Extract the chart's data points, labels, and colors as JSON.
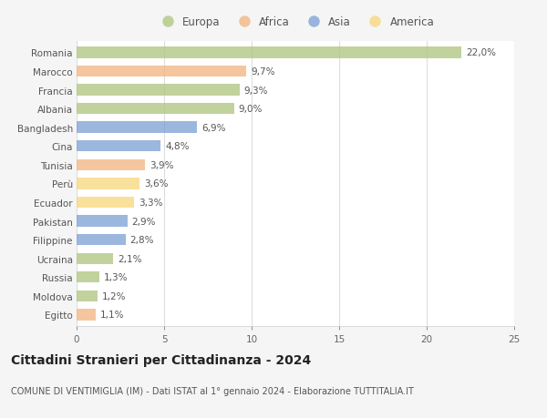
{
  "countries": [
    "Romania",
    "Marocco",
    "Francia",
    "Albania",
    "Bangladesh",
    "Cina",
    "Tunisia",
    "Perù",
    "Ecuador",
    "Pakistan",
    "Filippine",
    "Ucraina",
    "Russia",
    "Moldova",
    "Egitto"
  ],
  "values": [
    22.0,
    9.7,
    9.3,
    9.0,
    6.9,
    4.8,
    3.9,
    3.6,
    3.3,
    2.9,
    2.8,
    2.1,
    1.3,
    1.2,
    1.1
  ],
  "labels": [
    "22,0%",
    "9,7%",
    "9,3%",
    "9,0%",
    "6,9%",
    "4,8%",
    "3,9%",
    "3,6%",
    "3,3%",
    "2,9%",
    "2,8%",
    "2,1%",
    "1,3%",
    "1,2%",
    "1,1%"
  ],
  "continents": [
    "Europa",
    "Africa",
    "Europa",
    "Europa",
    "Asia",
    "Asia",
    "Africa",
    "America",
    "America",
    "Asia",
    "Asia",
    "Europa",
    "Europa",
    "Europa",
    "Africa"
  ],
  "colors": {
    "Europa": "#adc47c",
    "Africa": "#f2b47e",
    "Asia": "#7b9fd4",
    "America": "#f7d67a"
  },
  "legend_order": [
    "Europa",
    "Africa",
    "Asia",
    "America"
  ],
  "xlim": [
    0,
    25
  ],
  "xticks": [
    0,
    5,
    10,
    15,
    20,
    25
  ],
  "title": "Cittadini Stranieri per Cittadinanza - 2024",
  "subtitle": "COMUNE DI VENTIMIGLIA (IM) - Dati ISTAT al 1° gennaio 2024 - Elaborazione TUTTITALIA.IT",
  "bg_color": "#f5f5f5",
  "plot_bg": "#ffffff",
  "bar_height": 0.6,
  "label_fontsize": 7.5,
  "country_fontsize": 7.5,
  "title_fontsize": 10,
  "subtitle_fontsize": 7,
  "alpha": 0.75
}
